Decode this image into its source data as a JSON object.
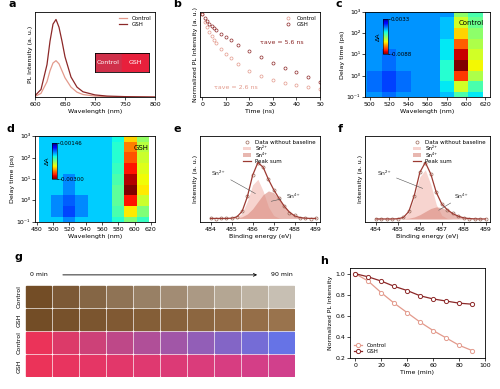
{
  "chart_data": [
    {
      "type": "line",
      "label": "a",
      "x_label": "Wavelength (nm)",
      "y_label": "PL Intensity (a. u.)",
      "x": [
        600,
        610,
        620,
        625,
        630,
        635,
        640,
        645,
        650,
        660,
        670,
        680,
        700,
        720,
        750,
        800
      ],
      "series": [
        {
          "name": "Control",
          "color": "#e39a8c",
          "line_style": "solid",
          "values": [
            0.01,
            0.05,
            0.2,
            0.34,
            0.44,
            0.47,
            0.43,
            0.34,
            0.25,
            0.13,
            0.065,
            0.035,
            0.015,
            0.008,
            0.004,
            0.002
          ]
        },
        {
          "name": "GSH",
          "color": "#8c2828",
          "line_style": "solid",
          "values": [
            0.02,
            0.1,
            0.42,
            0.72,
            0.94,
            1.0,
            0.9,
            0.72,
            0.52,
            0.26,
            0.13,
            0.07,
            0.03,
            0.015,
            0.008,
            0.003
          ]
        }
      ],
      "xlim": [
        600,
        800
      ],
      "xticks": [
        600,
        650,
        700,
        750,
        800
      ],
      "ylim": [
        0,
        1.1
      ],
      "tick_labels": "x",
      "legend": "upper right",
      "inset": [
        "Control",
        "GSH"
      ]
    },
    {
      "type": "line",
      "label": "b",
      "x_label": "Time (ns)",
      "y_label": "Normalized PL Intensity (a. u.)",
      "x": [
        0,
        1,
        2,
        3,
        4,
        5,
        6,
        8,
        10,
        12,
        15,
        20,
        25,
        30,
        35,
        40,
        45,
        50
      ],
      "series": [
        {
          "name": "Control",
          "type": "scatter",
          "color": "#e39a8c",
          "marker": "o",
          "values": [
            1.0,
            0.58,
            0.4,
            0.29,
            0.22,
            0.17,
            0.135,
            0.09,
            0.063,
            0.046,
            0.031,
            0.019,
            0.013,
            0.01,
            0.008,
            0.007,
            0.006,
            0.0055
          ]
        },
        {
          "name": "GSH",
          "type": "scatter",
          "color": "#8c2828",
          "marker": "o",
          "values": [
            1.0,
            0.78,
            0.63,
            0.52,
            0.44,
            0.38,
            0.33,
            0.26,
            0.2,
            0.16,
            0.12,
            0.075,
            0.05,
            0.034,
            0.024,
            0.017,
            0.012,
            0.009
          ]
        }
      ],
      "annotations": [
        {
          "text": "τave = 5.6 ns",
          "color": "#8c2828"
        },
        {
          "text": "τave = 2.6 ns",
          "color": "#e39a8c"
        }
      ],
      "log": "y",
      "xlim": [
        -1,
        50
      ],
      "xticks": [
        0,
        10,
        20,
        30,
        40,
        50
      ],
      "ylim": [
        0.003,
        1.2
      ],
      "tick_labels": "x",
      "legend": "upper right"
    },
    {
      "type": "heatmap",
      "label": "c",
      "title": "Control",
      "x_label": "Wavelength (nm)",
      "y_label": "Delay time (ps)",
      "x": [
        490,
        505,
        520,
        535,
        550,
        565,
        580,
        595,
        610
      ],
      "y": [
        0.1,
        0.3,
        1,
        3,
        10,
        30,
        100,
        300,
        1000
      ],
      "cells": [
        [
          0,
          0,
          0.0005,
          0,
          0,
          0,
          -0.0005,
          -0.002,
          -0.001
        ],
        [
          0,
          0.0005,
          0.001,
          0.0005,
          0,
          0,
          -0.001,
          -0.004,
          -0.002
        ],
        [
          0,
          0.0005,
          0.001,
          0.0005,
          0,
          0,
          -0.0015,
          -0.007,
          -0.0035
        ],
        [
          0,
          0,
          0.0005,
          0,
          0,
          0,
          -0.0015,
          -0.0088,
          -0.0045
        ],
        [
          0,
          0,
          0.0005,
          0,
          0,
          0,
          -0.001,
          -0.008,
          -0.004
        ],
        [
          0,
          0,
          0,
          0,
          0,
          0,
          -0.001,
          -0.0065,
          -0.0035
        ],
        [
          0,
          0,
          0,
          0,
          0,
          0,
          -0.0005,
          -0.005,
          -0.003
        ],
        [
          0,
          0,
          0,
          0,
          0,
          0,
          -0.0005,
          -0.004,
          -0.0025
        ],
        [
          0,
          0,
          0,
          0,
          0,
          0,
          0,
          -0.003,
          -0.002
        ]
      ],
      "log": "y",
      "xlim": [
        495,
        625
      ],
      "xticks": [
        500,
        520,
        540,
        560,
        580,
        600,
        620
      ],
      "ylim": [
        0.1,
        1000
      ],
      "yticks": [
        {
          "value": 0.1,
          "label": "10⁻¹"
        },
        {
          "value": 1,
          "label": "10⁰"
        },
        {
          "value": 10,
          "label": "10¹"
        },
        {
          "value": 100,
          "label": "10²"
        },
        {
          "value": 1000,
          "label": "10³"
        }
      ],
      "colorbar_label": "ΔA",
      "colorbar_range": [
        -0.0088,
        0.0033
      ],
      "colorbar_ticks": [
        -0.0088,
        0.0033
      ]
    },
    {
      "type": "heatmap",
      "label": "d",
      "title": "GSH",
      "x_label": "Wavelength (nm)",
      "y_label": "Delay time (ps)",
      "x": [
        490,
        505,
        520,
        535,
        550,
        565,
        580,
        595,
        610
      ],
      "y": [
        0.1,
        0.3,
        1,
        3,
        10,
        30,
        100,
        300,
        1000
      ],
      "cells": [
        [
          0,
          0,
          0.0003,
          0,
          0,
          0,
          -0.0003,
          -0.0008,
          -0.0004
        ],
        [
          0,
          0.0003,
          0.0006,
          0.0003,
          0,
          0,
          -0.0005,
          -0.0015,
          -0.0008
        ],
        [
          0,
          0.0003,
          0.0005,
          0.0003,
          0,
          0,
          -0.0006,
          -0.0025,
          -0.0012
        ],
        [
          0,
          0,
          0.0003,
          0,
          0,
          0,
          -0.0006,
          -0.003,
          -0.0015
        ],
        [
          0,
          0,
          0.0003,
          0,
          0,
          0,
          -0.0005,
          -0.0028,
          -0.0014
        ],
        [
          0,
          0,
          0,
          0,
          0,
          0,
          -0.0004,
          -0.0025,
          -0.0013
        ],
        [
          0,
          0,
          0,
          0,
          0,
          0,
          -0.0003,
          -0.0022,
          -0.0012
        ],
        [
          0,
          0,
          0,
          0,
          0,
          0,
          -0.0003,
          -0.002,
          -0.0011
        ],
        [
          0,
          0,
          0,
          0,
          0,
          0,
          -0.0002,
          -0.0016,
          -0.0009
        ]
      ],
      "log": "y",
      "xlim": [
        478,
        625
      ],
      "xticks": [
        480,
        500,
        520,
        540,
        560,
        580,
        600,
        620
      ],
      "ylim": [
        0.1,
        1000
      ],
      "yticks": [
        {
          "value": 0.1,
          "label": "10⁻¹"
        },
        {
          "value": 1,
          "label": "10⁰"
        },
        {
          "value": 10,
          "label": "10¹"
        },
        {
          "value": 100,
          "label": "10²"
        },
        {
          "value": 1000,
          "label": "10³"
        }
      ],
      "colorbar_label": "ΔA",
      "colorbar_range": [
        -0.003,
        0.00146
      ],
      "colorbar_ticks": [
        {
          "value": -0.003,
          "label": "-0.00300"
        },
        0.00146
      ]
    },
    {
      "type": "line",
      "label": "e",
      "x_label": "Binding energy (eV)",
      "y_label": "Intensity (a. u.)",
      "x": [
        484,
        484.25,
        484.5,
        484.75,
        485,
        485.25,
        485.5,
        485.75,
        486,
        486.25,
        486.5,
        486.75,
        487,
        487.25,
        487.5,
        487.75,
        488,
        488.25,
        488.5,
        488.75,
        489
      ],
      "series": [
        {
          "name": "Data without baseline",
          "type": "scatter",
          "color": "#9a6a5a",
          "marker": "o",
          "values": [
            0.005,
            -0.003,
            0.004,
            0.002,
            0.01,
            0.02,
            0.11,
            0.34,
            0.66,
            0.84,
            0.78,
            0.6,
            0.43,
            0.31,
            0.19,
            0.09,
            0.045,
            0.01,
            0.006,
            -0.002,
            0.003
          ]
        },
        {
          "name": "Sn²⁺",
          "type": "area",
          "color": "#f2b8b0",
          "values": [
            0,
            0,
            0,
            0,
            0.002,
            0.015,
            0.081,
            0.262,
            0.51,
            0.594,
            0.416,
            0.175,
            0.044,
            0.007,
            0,
            0,
            0,
            0,
            0,
            0,
            0
          ]
        },
        {
          "name": "Sn⁴⁺",
          "type": "area",
          "color": "#d9887c",
          "values": [
            0,
            0,
            0,
            0,
            0.002,
            0.008,
            0.026,
            0.068,
            0.146,
            0.255,
            0.362,
            0.418,
            0.393,
            0.3,
            0.187,
            0.095,
            0.039,
            0.013,
            0.004,
            0,
            0
          ]
        },
        {
          "name": "Peak sum",
          "type": "line",
          "color": "#9c3a32",
          "line_style": "solid",
          "values": [
            0,
            0,
            0,
            0,
            0.004,
            0.023,
            0.107,
            0.33,
            0.656,
            0.849,
            0.778,
            0.593,
            0.437,
            0.307,
            0.187,
            0.095,
            0.039,
            0.013,
            0.004,
            0,
            0
          ]
        }
      ],
      "annotations": [
        {
          "text": "Sn²⁺",
          "color": "#333333"
        },
        {
          "text": "Sn⁴⁺",
          "color": "#333333"
        }
      ],
      "xlim": [
        483.5,
        489.2
      ],
      "xticks": [
        484,
        485,
        486,
        487,
        488,
        489
      ],
      "ylim": [
        -0.05,
        1.25
      ],
      "tick_labels": "x",
      "legend": "upper right"
    },
    {
      "type": "line",
      "label": "f",
      "x_label": "Binding energy (eV)",
      "y_label": "Intensity (a. u.)",
      "x": [
        484,
        484.25,
        484.5,
        484.75,
        485,
        485.25,
        485.5,
        485.75,
        486,
        486.25,
        486.5,
        486.75,
        487,
        487.25,
        487.5,
        487.75,
        488,
        488.25,
        488.5,
        488.75,
        489
      ],
      "series": [
        {
          "name": "Data without baseline",
          "type": "scatter",
          "color": "#9a6a5a",
          "marker": "o",
          "values": [
            0.003,
            0,
            0.004,
            0.002,
            0.006,
            0.03,
            0.14,
            0.42,
            0.85,
            1.02,
            0.82,
            0.48,
            0.27,
            0.17,
            0.1,
            0.05,
            0.02,
            0.008,
            0.004,
            0.001,
            0
          ]
        },
        {
          "name": "Sn²⁺",
          "type": "area",
          "color": "#f2b8b0",
          "values": [
            0,
            0,
            0,
            0,
            0.003,
            0.023,
            0.122,
            0.393,
            0.765,
            0.891,
            0.624,
            0.263,
            0.066,
            0.011,
            0,
            0,
            0,
            0,
            0,
            0,
            0
          ]
        },
        {
          "name": "Sn⁴⁺",
          "type": "area",
          "color": "#d9887c",
          "values": [
            0,
            0,
            0,
            0,
            0.001,
            0.004,
            0.014,
            0.036,
            0.077,
            0.134,
            0.19,
            0.219,
            0.206,
            0.157,
            0.098,
            0.05,
            0.02,
            0.007,
            0.002,
            0,
            0
          ]
        },
        {
          "name": "Peak sum",
          "type": "line",
          "color": "#9c3a32",
          "line_style": "solid",
          "values": [
            0,
            0,
            0,
            0,
            0.004,
            0.027,
            0.136,
            0.429,
            0.842,
            1.025,
            0.814,
            0.482,
            0.272,
            0.168,
            0.098,
            0.05,
            0.02,
            0.007,
            0.002,
            0,
            0
          ]
        }
      ],
      "annotations": [
        {
          "text": "Sn²⁺",
          "color": "#333333"
        },
        {
          "text": "Sn⁴⁺",
          "color": "#333333"
        }
      ],
      "xlim": [
        483.5,
        489.2
      ],
      "xticks": [
        484,
        485,
        486,
        487,
        488,
        489
      ],
      "ylim": [
        -0.05,
        1.5
      ],
      "tick_labels": "x",
      "legend": "upper right"
    },
    {
      "type": "image_grid",
      "label": "g",
      "rows": [
        "Control",
        "GSH",
        "Control",
        "GSH"
      ],
      "columns": 10,
      "start_label": "0 min",
      "end_label": "90 min"
    },
    {
      "type": "line",
      "label": "h",
      "x_label": "Time (min)",
      "y_label": "Normalized PL Intensity",
      "x": [
        0,
        10,
        20,
        30,
        40,
        50,
        60,
        70,
        80,
        90
      ],
      "series": [
        {
          "name": "Control",
          "color": "#e39a8c",
          "marker": "o",
          "line_style": "solid",
          "values": [
            1.0,
            0.93,
            0.82,
            0.72,
            0.63,
            0.54,
            0.46,
            0.39,
            0.32,
            0.27
          ]
        },
        {
          "name": "GSH",
          "color": "#8c2828",
          "marker": "o",
          "line_style": "solid",
          "values": [
            1.0,
            0.97,
            0.93,
            0.88,
            0.84,
            0.79,
            0.76,
            0.74,
            0.72,
            0.71
          ]
        }
      ],
      "xlim": [
        -4,
        100
      ],
      "xticks": [
        0,
        20,
        40,
        60,
        80,
        100
      ],
      "ylim": [
        0.2,
        1.05
      ],
      "yticks": [
        0.2,
        0.4,
        0.6,
        0.8,
        {
          "value": 1.0,
          "label": "1.0"
        }
      ],
      "legend": "lower left"
    }
  ]
}
